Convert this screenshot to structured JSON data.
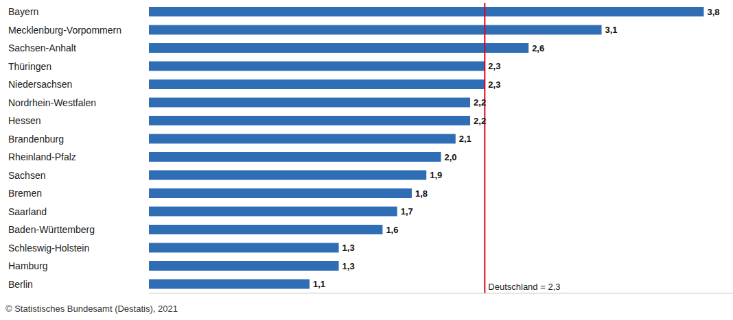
{
  "chart_data": {
    "type": "bar",
    "orientation": "horizontal",
    "categories": [
      "Bayern",
      "Mecklenburg-Vorpommern",
      "Sachsen-Anhalt",
      "Thüringen",
      "Niedersachsen",
      "Nordrhein-Westfalen",
      "Hessen",
      "Brandenburg",
      "Rheinland-Pfalz",
      "Sachsen",
      "Bremen",
      "Saarland",
      "Baden-Württemberg",
      "Schleswig-Holstein",
      "Hamburg",
      "Berlin"
    ],
    "values": [
      3.8,
      3.1,
      2.6,
      2.3,
      2.3,
      2.2,
      2.2,
      2.1,
      2.0,
      1.9,
      1.8,
      1.7,
      1.6,
      1.3,
      1.3,
      1.1
    ],
    "value_labels": [
      "3,8",
      "3,1",
      "2,6",
      "2,3",
      "2,3",
      "2,2",
      "2,2",
      "2,1",
      "2,0",
      "1,9",
      "1,8",
      "1,7",
      "1,6",
      "1,3",
      "1,3",
      "1,1"
    ],
    "color": "#2f6db5",
    "data_labels": true,
    "tick_labels": "y",
    "grid": false,
    "xlim": [
      0,
      4
    ],
    "annotations": [
      {
        "value": 2.3,
        "label": "Deutschland = 2,3",
        "color": "#e2001a"
      }
    ],
    "source": "© Statistisches Bundesamt (Destatis), 2021"
  }
}
